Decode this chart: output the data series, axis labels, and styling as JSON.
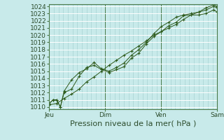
{
  "background_color": "#c8eaea",
  "plot_bg_color": "#c8eaea",
  "grid_major_color": "#b0d8d8",
  "grid_minor_color": "#b8e0e0",
  "spine_color": "#4a7a4a",
  "line_color": "#2d5a1b",
  "marker_color": "#2d5a1b",
  "ylim": [
    1010,
    1024
  ],
  "yticks": [
    1010,
    1011,
    1012,
    1013,
    1014,
    1015,
    1016,
    1017,
    1018,
    1019,
    1020,
    1021,
    1022,
    1023,
    1024
  ],
  "xlabel": "Pression niveau de la mer( hPa )",
  "xlabel_fontsize": 8,
  "tick_fontsize": 6.5,
  "xtick_labels": [
    "Jeu",
    "Dim",
    "Ven",
    "Sam"
  ],
  "xtick_positions": [
    0.0,
    0.333,
    0.667,
    1.0
  ],
  "line1_x": [
    0.0,
    0.022,
    0.044,
    0.066,
    0.088,
    0.133,
    0.178,
    0.222,
    0.267,
    0.311,
    0.356,
    0.4,
    0.444,
    0.489,
    0.533,
    0.578,
    0.622,
    0.667,
    0.711,
    0.756,
    0.8,
    0.844,
    0.889,
    0.933,
    0.978,
    1.0
  ],
  "line1_y": [
    1010.5,
    1011.0,
    1011.0,
    1010.0,
    1012.2,
    1013.8,
    1014.8,
    1015.3,
    1016.2,
    1015.3,
    1015.0,
    1015.5,
    1016.1,
    1017.2,
    1018.0,
    1019.0,
    1020.2,
    1021.2,
    1021.8,
    1022.5,
    1022.8,
    1023.0,
    1023.2,
    1023.5,
    1024.0,
    1023.8
  ],
  "line2_x": [
    0.0,
    0.022,
    0.044,
    0.066,
    0.088,
    0.133,
    0.178,
    0.222,
    0.267,
    0.311,
    0.356,
    0.4,
    0.444,
    0.489,
    0.533,
    0.578,
    0.622,
    0.667,
    0.711,
    0.756,
    0.8,
    0.844,
    0.889,
    0.933,
    0.978,
    1.0
  ],
  "line2_y": [
    1010.5,
    1011.0,
    1011.0,
    1010.0,
    1012.0,
    1012.5,
    1014.3,
    1015.5,
    1015.8,
    1015.2,
    1014.8,
    1015.2,
    1015.6,
    1016.8,
    1017.5,
    1018.8,
    1019.8,
    1020.5,
    1021.3,
    1021.8,
    1022.7,
    1022.8,
    1022.8,
    1023.0,
    1023.5,
    1023.2
  ],
  "line3_x": [
    0.0,
    0.044,
    0.088,
    0.133,
    0.178,
    0.222,
    0.267,
    0.311,
    0.356,
    0.4,
    0.444,
    0.489,
    0.533,
    0.578,
    0.622,
    0.667,
    0.711,
    0.756,
    0.8,
    0.844,
    0.889,
    0.933,
    0.978,
    1.0
  ],
  "line3_y": [
    1010.3,
    1010.5,
    1011.2,
    1011.8,
    1012.5,
    1013.5,
    1014.2,
    1015.0,
    1015.8,
    1016.5,
    1017.2,
    1017.8,
    1018.5,
    1019.2,
    1020.0,
    1020.5,
    1021.0,
    1021.5,
    1022.2,
    1022.8,
    1023.2,
    1023.8,
    1024.2,
    1024.0
  ],
  "xlim": [
    0.0,
    1.0
  ],
  "vline_positions": [
    0.0,
    0.333,
    0.667,
    1.0
  ]
}
